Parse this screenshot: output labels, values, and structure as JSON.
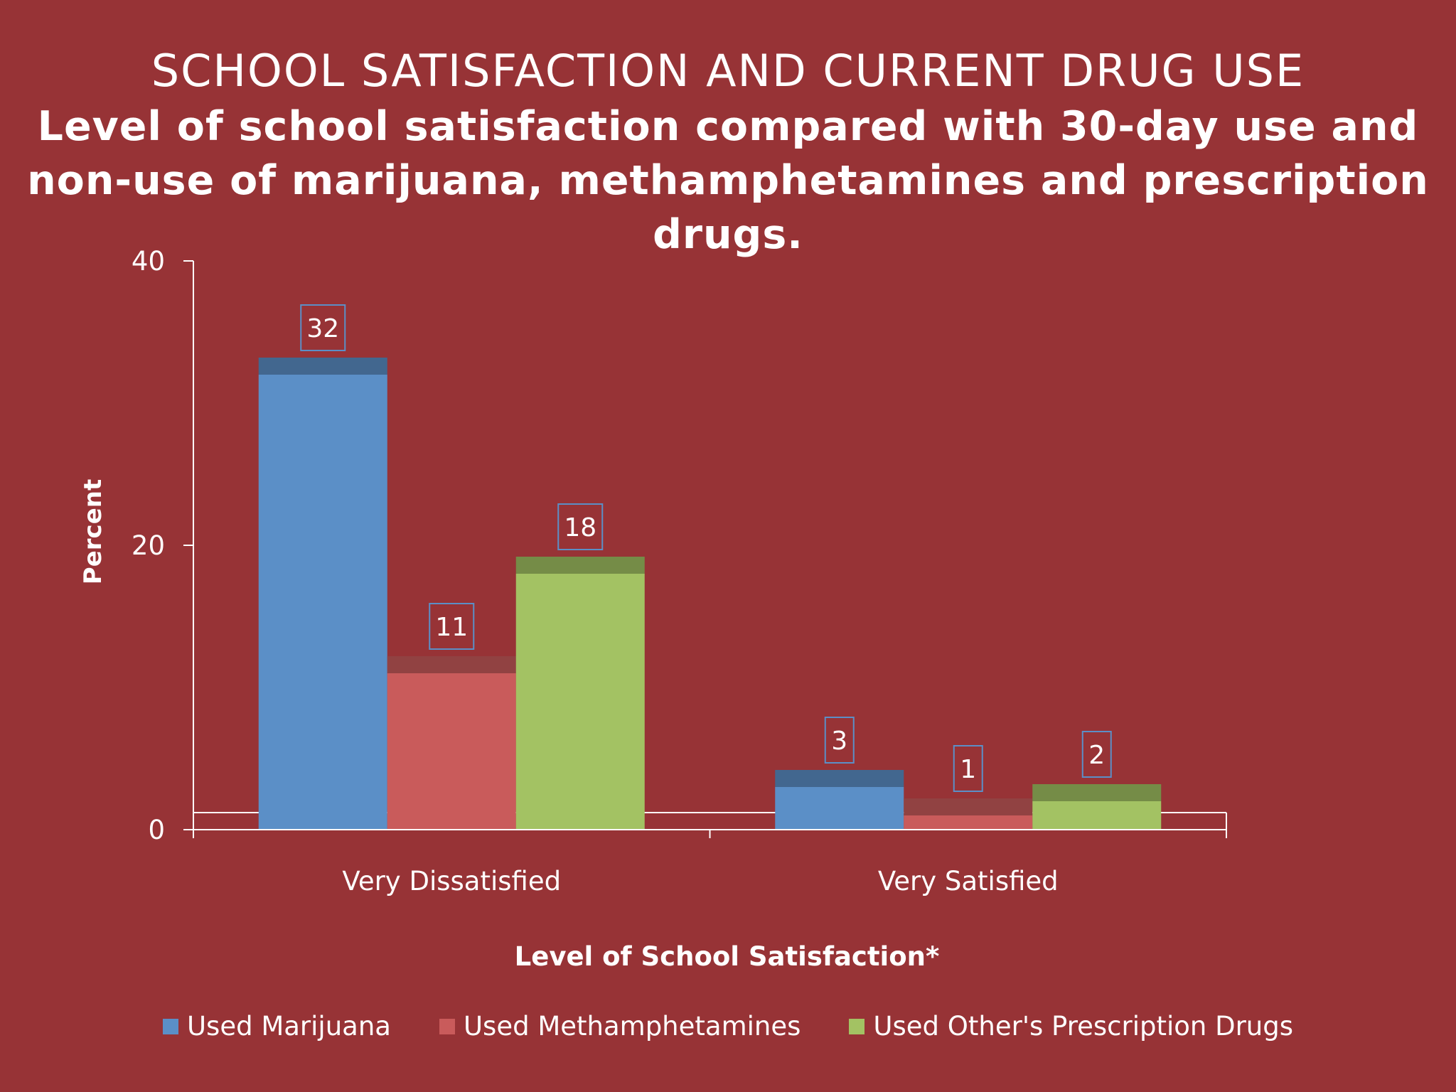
{
  "title": "SCHOOL SATISFACTION AND CURRENT DRUG USE",
  "subtitle": "Level of school satisfaction compared with 30-day use and non-use of marijuana, methamphetamines and prescription drugs.",
  "chart_data": {
    "type": "bar",
    "title": "SCHOOL SATISFACTION AND CURRENT DRUG USE",
    "subtitle": "Level of school satisfaction compared with 30-day use and non-use of marijuana, methamphetamines and prescription drugs.",
    "xlabel": "Level of School Satisfaction*",
    "ylabel": "Percent",
    "ylim": [
      0,
      40
    ],
    "yticks": [
      0,
      20,
      40
    ],
    "categories": [
      "Very Dissatisfied",
      "Very Satisfied"
    ],
    "series": [
      {
        "name": "Used Marijuana",
        "values": [
          32,
          3
        ],
        "color": "#5b8fc7"
      },
      {
        "name": "Used Methamphetamines",
        "values": [
          11,
          1
        ],
        "color": "#c95b5b"
      },
      {
        "name": "Used Other's Prescription Drugs",
        "values": [
          18,
          2
        ],
        "color": "#a3c263"
      }
    ],
    "legend_position": "bottom",
    "grid": false
  }
}
